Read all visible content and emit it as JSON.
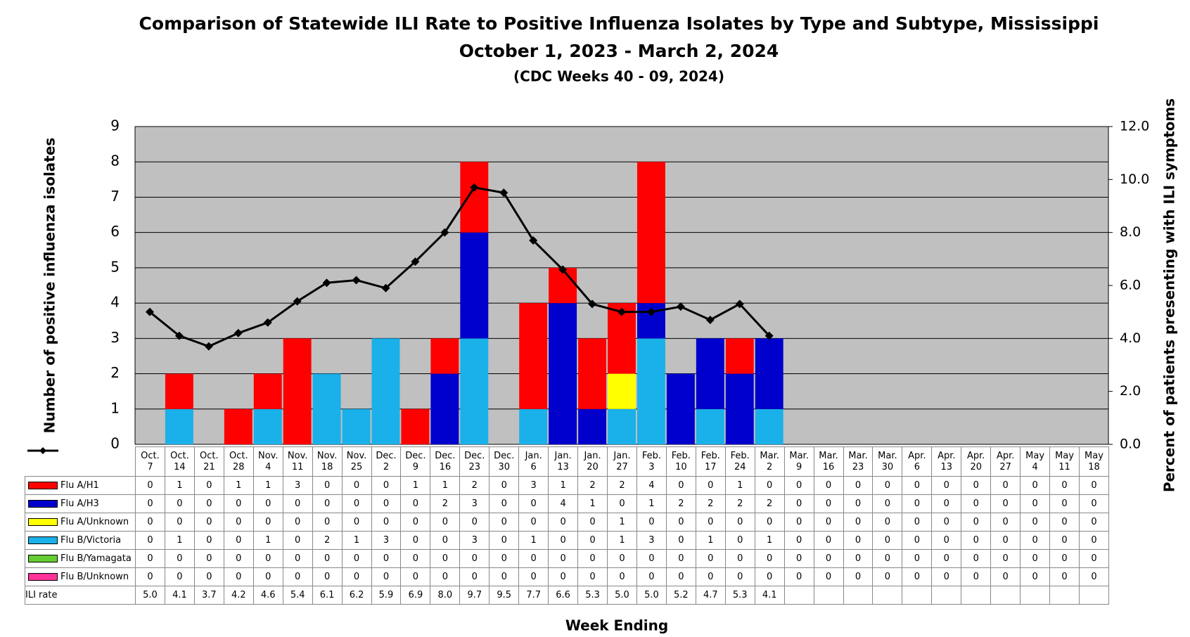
{
  "chart_data": {
    "type": "bar",
    "title": "Comparison of Statewide ILI Rate to Positive Influenza Isolates by Type and Subtype, Mississippi",
    "subtitle": "October 1, 2023 - March 2, 2024",
    "subtitle2": "(CDC Weeks 40 - 09, 2024)",
    "ylabel": "Number of positive influenza isolates",
    "y2label": "Percent of patients presenting with ILI symptoms",
    "xlabel": "Week Ending",
    "categories": [
      "Oct.\n7",
      "Oct.\n14",
      "Oct.\n21",
      "Oct.\n28",
      "Nov.\n4",
      "Nov.\n11",
      "Nov.\n18",
      "Nov.\n25",
      "Dec.\n2",
      "Dec.\n9",
      "Dec.\n16",
      "Dec.\n23",
      "Dec.\n30",
      "Jan.\n6",
      "Jan.\n13",
      "Jan.\n20",
      "Jan.\n27",
      "Feb.\n3",
      "Feb.\n10",
      "Feb.\n17",
      "Feb.\n24",
      "Mar.\n2",
      "Mar.\n9",
      "Mar.\n16",
      "Mar.\n23",
      "Mar.\n30",
      "Apr.\n6",
      "Apr.\n13",
      "Apr.\n20",
      "Apr.\n27",
      "May\n4",
      "May\n11",
      "May\n18"
    ],
    "ylim": [
      0,
      9
    ],
    "yticks": [
      0,
      1,
      2,
      3,
      4,
      5,
      6,
      7,
      8,
      9
    ],
    "y2lim": [
      0,
      12
    ],
    "y2ticks": [
      {
        "value": 0,
        "label": "0.0"
      },
      {
        "value": 2,
        "label": "2.0"
      },
      {
        "value": 4,
        "label": "4.0"
      },
      {
        "value": 6,
        "label": "6.0"
      },
      {
        "value": 8,
        "label": "8.0"
      },
      {
        "value": 10,
        "label": "10.0"
      },
      {
        "value": 12,
        "label": "12.0"
      }
    ],
    "grid": true,
    "series": [
      {
        "name": "Flu A/H1",
        "color": "#ff0000",
        "values": [
          0,
          1,
          0,
          1,
          1,
          3,
          0,
          0,
          0,
          1,
          1,
          2,
          0,
          3,
          1,
          2,
          2,
          4,
          0,
          0,
          1,
          0,
          0,
          0,
          0,
          0,
          0,
          0,
          0,
          0,
          0,
          0,
          0
        ]
      },
      {
        "name": "Flu A/H3",
        "color": "#0000cc",
        "values": [
          0,
          0,
          0,
          0,
          0,
          0,
          0,
          0,
          0,
          0,
          2,
          3,
          0,
          0,
          4,
          1,
          0,
          1,
          2,
          2,
          2,
          2,
          0,
          0,
          0,
          0,
          0,
          0,
          0,
          0,
          0,
          0,
          0
        ]
      },
      {
        "name": "Flu A/Unknown",
        "color": "#ffff00",
        "values": [
          0,
          0,
          0,
          0,
          0,
          0,
          0,
          0,
          0,
          0,
          0,
          0,
          0,
          0,
          0,
          0,
          1,
          0,
          0,
          0,
          0,
          0,
          0,
          0,
          0,
          0,
          0,
          0,
          0,
          0,
          0,
          0,
          0
        ]
      },
      {
        "name": "Flu B/Victoria",
        "color": "#1ab0ea",
        "values": [
          0,
          1,
          0,
          0,
          1,
          0,
          2,
          1,
          3,
          0,
          0,
          3,
          0,
          1,
          0,
          0,
          1,
          3,
          0,
          1,
          0,
          1,
          0,
          0,
          0,
          0,
          0,
          0,
          0,
          0,
          0,
          0,
          0
        ]
      },
      {
        "name": "Flu B/Yamagata",
        "color": "#66cc33",
        "values": [
          0,
          0,
          0,
          0,
          0,
          0,
          0,
          0,
          0,
          0,
          0,
          0,
          0,
          0,
          0,
          0,
          0,
          0,
          0,
          0,
          0,
          0,
          0,
          0,
          0,
          0,
          0,
          0,
          0,
          0,
          0,
          0,
          0
        ]
      },
      {
        "name": "Flu B/Unknown",
        "color": "#ff3399",
        "values": [
          0,
          0,
          0,
          0,
          0,
          0,
          0,
          0,
          0,
          0,
          0,
          0,
          0,
          0,
          0,
          0,
          0,
          0,
          0,
          0,
          0,
          0,
          0,
          0,
          0,
          0,
          0,
          0,
          0,
          0,
          0,
          0,
          0
        ]
      },
      {
        "name": "ILI rate",
        "color": "#000000",
        "axis": "y2",
        "values": [
          5.0,
          4.1,
          3.7,
          4.2,
          4.6,
          5.4,
          6.1,
          6.2,
          5.9,
          6.9,
          8.0,
          9.7,
          9.5,
          7.7,
          6.6,
          5.3,
          5.0,
          5.0,
          5.2,
          4.7,
          5.3,
          4.1,
          null,
          null,
          null,
          null,
          null,
          null,
          null,
          null,
          null,
          null,
          null
        ],
        "value_labels": [
          "5.0",
          "4.1",
          "3.7",
          "4.2",
          "4.6",
          "5.4",
          "6.1",
          "6.2",
          "5.9",
          "6.9",
          "8.0",
          "9.7",
          "9.5",
          "7.7",
          "6.6",
          "5.3",
          "5.0",
          "5.0",
          "5.2",
          "4.7",
          "5.3",
          "4.1",
          null,
          null,
          null,
          null,
          null,
          null,
          null,
          null,
          null,
          null,
          null
        ]
      }
    ]
  }
}
